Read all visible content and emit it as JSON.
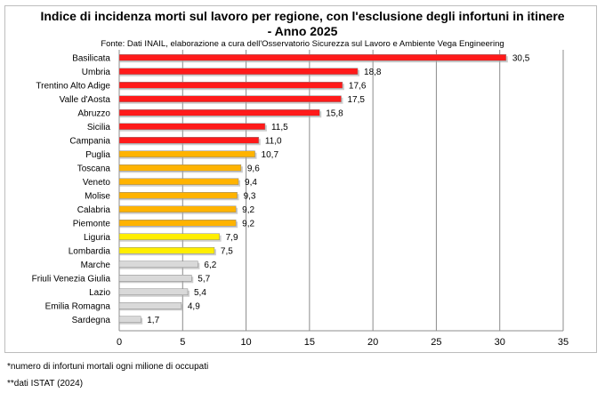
{
  "title_line1": "Indice di incidenza morti sul lavoro per regione, con l'esclusione degli infortuni in itinere",
  "title_line2": "- Anno 2025",
  "subtitle": "Fonte: Dati INAIL, elaborazione a cura dell'Osservatorio Sicurezza sul Lavoro e Ambiente Vega Engineering",
  "footnotes": {
    "note1": "*numero di infortuni mortali ogni milione di occupati",
    "note2": "**dati ISTAT (2024)"
  },
  "chart_data": {
    "type": "bar",
    "orientation": "horizontal",
    "title": "Indice di incidenza morti sul lavoro per regione, con l'esclusione degli infortuni in itinere - Anno 2025",
    "xlim": [
      0,
      35
    ],
    "xticks": [
      0,
      5,
      10,
      15,
      20,
      25,
      30,
      35
    ],
    "grid": true,
    "categories": [
      "Basilicata",
      "Umbria",
      "Trentino Alto Adige",
      "Valle d'Aosta",
      "Abruzzo",
      "Sicilia",
      "Campania",
      "Puglia",
      "Toscana",
      "Veneto",
      "Molise",
      "Calabria",
      "Piemonte",
      "Liguria",
      "Lombardia",
      "Marche",
      "Friuli Venezia Giulia",
      "Lazio",
      "Emilia Romagna",
      "Sardegna"
    ],
    "values": [
      30.5,
      18.8,
      17.6,
      17.5,
      15.8,
      11.5,
      11.0,
      10.7,
      9.6,
      9.4,
      9.3,
      9.2,
      9.2,
      7.9,
      7.5,
      6.2,
      5.7,
      5.4,
      4.9,
      1.7
    ],
    "value_labels": [
      "30,5",
      "18,8",
      "17,6",
      "17,5",
      "15,8",
      "11,5",
      "11,0",
      "10,7",
      "9,6",
      "9,4",
      "9,3",
      "9,2",
      "9,2",
      "7,9",
      "7,5",
      "6,2",
      "5,7",
      "5,4",
      "4,9",
      "1,7"
    ],
    "bar_colors": [
      "#ff1a1a",
      "#ff1a1a",
      "#ff1a1a",
      "#ff1a1a",
      "#ff1a1a",
      "#ff1a1a",
      "#ff1a1a",
      "#ffb300",
      "#ffb300",
      "#ffb300",
      "#ffb300",
      "#ffb300",
      "#ffb300",
      "#ffee00",
      "#ffee00",
      "#d9d9d9",
      "#d9d9d9",
      "#d9d9d9",
      "#d9d9d9",
      "#d9d9d9"
    ]
  }
}
